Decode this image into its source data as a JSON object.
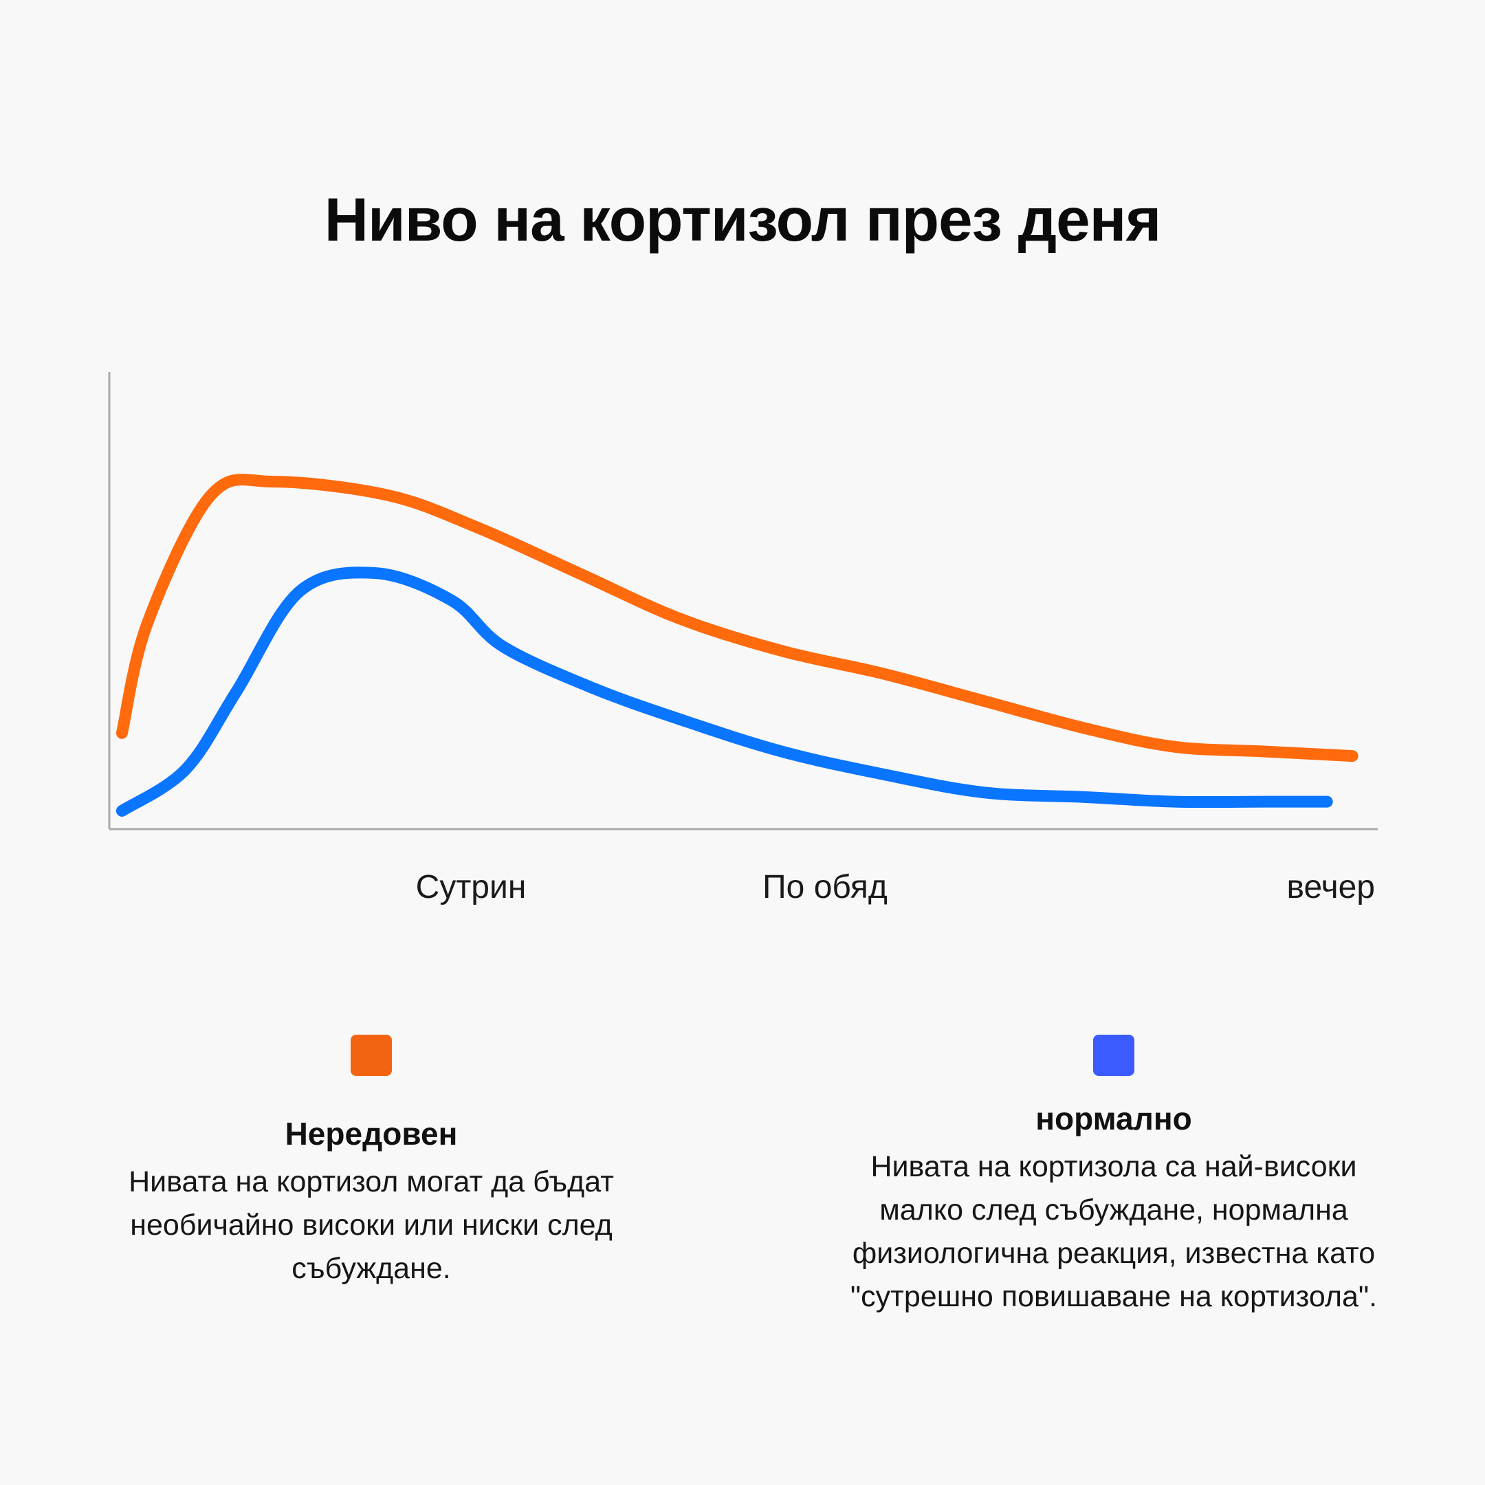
{
  "title": "Ниво на кортизол през деня",
  "chart_data": {
    "type": "line",
    "title": "Ниво на кортизол през деня",
    "xlabel": "",
    "ylabel": "",
    "x_ticks": [
      "Сутрин",
      "По обяд",
      "вечер"
    ],
    "grid": false,
    "legend_position": "bottom",
    "series": [
      {
        "name": "Нередовен",
        "color": "#ff6a0d",
        "description": "Нивата на кортизол могат да бъдат необичайно високи или ниски след събуждане.",
        "x": [
          0.01,
          0.03,
          0.08,
          0.13,
          0.22,
          0.29,
          0.37,
          0.45,
          0.53,
          0.61,
          0.69,
          0.77,
          0.84,
          0.91,
          0.98
        ],
        "y": [
          0.21,
          0.45,
          0.73,
          0.76,
          0.73,
          0.66,
          0.56,
          0.46,
          0.39,
          0.34,
          0.28,
          0.22,
          0.18,
          0.17,
          0.16
        ]
      },
      {
        "name": "нормално",
        "color": "#0a75ff",
        "description": "Нивата на кортизола са най-високи малко след събуждане, нормална физиологична реакция, известна като \"сутрешно повишаване на кортизола\".",
        "x": [
          0.01,
          0.06,
          0.1,
          0.15,
          0.21,
          0.27,
          0.31,
          0.38,
          0.45,
          0.53,
          0.61,
          0.69,
          0.77,
          0.84,
          0.91,
          0.96
        ],
        "y": [
          0.04,
          0.13,
          0.3,
          0.52,
          0.56,
          0.5,
          0.4,
          0.31,
          0.24,
          0.17,
          0.12,
          0.08,
          0.07,
          0.06,
          0.06,
          0.06
        ]
      }
    ]
  },
  "legend": [
    {
      "name": "Нередовен",
      "color": "#f26411",
      "description": "Нивата на кортизол могат да бъдат необичайно високи или ниски след събуждане."
    },
    {
      "name": "нормално",
      "color": "#3b5bff",
      "description": "Нивата на кортизола са най-високи малко след събуждане, нормална физиологична реакция, известна като \"сутрешно повишаване на кортизола\"."
    }
  ]
}
